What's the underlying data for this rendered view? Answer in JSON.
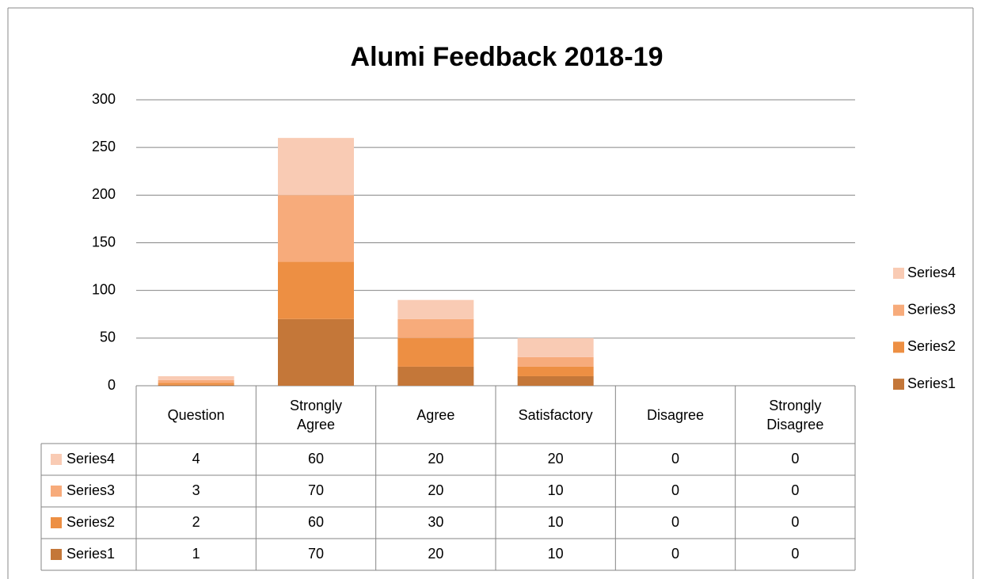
{
  "chart_data": {
    "type": "stacked_bar",
    "title": "Alumi Feedback 2018-19",
    "categories": [
      "Question",
      "Strongly Agree",
      "Agree",
      "Satisfactory",
      "Disagree",
      "Strongly Disagree"
    ],
    "series": [
      {
        "name": "Series1",
        "color": "#c47739",
        "values": [
          1,
          70,
          20,
          10,
          0,
          0
        ]
      },
      {
        "name": "Series2",
        "color": "#ed8f43",
        "values": [
          2,
          60,
          30,
          10,
          0,
          0
        ]
      },
      {
        "name": "Series3",
        "color": "#f7ab7b",
        "values": [
          3,
          70,
          20,
          10,
          0,
          0
        ]
      },
      {
        "name": "Series4",
        "color": "#f9cbb4",
        "values": [
          4,
          60,
          20,
          20,
          0,
          0
        ]
      }
    ],
    "ylim": [
      0,
      300
    ],
    "yticks": [
      0,
      50,
      100,
      150,
      200,
      250,
      300
    ],
    "grid": true,
    "legend": "right"
  }
}
